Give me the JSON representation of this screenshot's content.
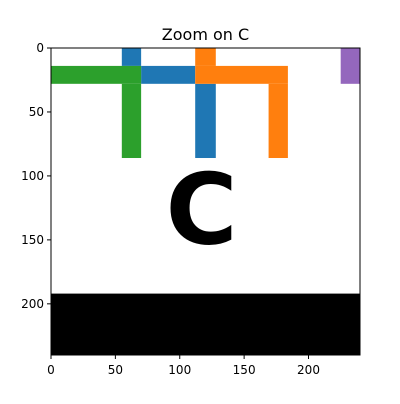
{
  "chart_data": {
    "type": "image",
    "title": "Zoom on C",
    "xlabel": "",
    "ylabel": "",
    "xlim": [
      0,
      240
    ],
    "ylim": [
      240,
      0
    ],
    "y_inverted": true,
    "grid": false,
    "xticks": [
      0,
      50,
      100,
      150,
      200
    ],
    "yticks": [
      0,
      50,
      100,
      150,
      200
    ],
    "xtick_labels": [
      "0",
      "50",
      "100",
      "150",
      "200"
    ],
    "ytick_labels": [
      "0",
      "50",
      "100",
      "150",
      "200"
    ],
    "regions": [
      {
        "name": "blue-horizontal-bar",
        "color": "#1f77b4",
        "x": [
          70,
          112
        ],
        "y": [
          14,
          28
        ]
      },
      {
        "name": "blue-stem-left",
        "color": "#1f77b4",
        "x": [
          55,
          70
        ],
        "y": [
          0,
          14
        ]
      },
      {
        "name": "blue-stem-right",
        "color": "#1f77b4",
        "x": [
          112,
          128
        ],
        "y": [
          28,
          86
        ]
      },
      {
        "name": "green-horizontal-bar",
        "color": "#2ca02c",
        "x": [
          0,
          70
        ],
        "y": [
          14,
          28
        ]
      },
      {
        "name": "green-stem",
        "color": "#2ca02c",
        "x": [
          55,
          70
        ],
        "y": [
          28,
          86
        ]
      },
      {
        "name": "orange-stem-left",
        "color": "#ff7f0e",
        "x": [
          112,
          128
        ],
        "y": [
          0,
          14
        ]
      },
      {
        "name": "orange-horizontal-bar",
        "color": "#ff7f0e",
        "x": [
          112,
          184
        ],
        "y": [
          14,
          28
        ]
      },
      {
        "name": "orange-stem-right",
        "color": "#ff7f0e",
        "x": [
          169,
          184
        ],
        "y": [
          28,
          86
        ]
      },
      {
        "name": "purple-block",
        "color": "#9467bd",
        "x": [
          225,
          240
        ],
        "y": [
          0,
          28
        ]
      },
      {
        "name": "black-band",
        "color": "#000000",
        "x": [
          0,
          240
        ],
        "y": [
          192,
          240
        ]
      }
    ],
    "glyph": {
      "text": "C",
      "x": 117,
      "y": 132,
      "color": "#000000"
    }
  }
}
